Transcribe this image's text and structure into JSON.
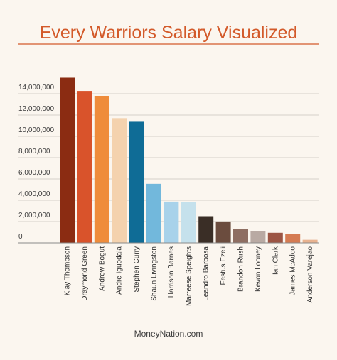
{
  "chart_data": {
    "type": "bar",
    "title": "Every Warriors Salary Visualized",
    "source": "MoneyNation.com",
    "categories": [
      "Klay Thompson",
      "Draymond Green",
      "Andrew Bogut",
      "Andre Iguodala",
      "Stephen Curry",
      "Shaun Livingston",
      "Harrison Barnes",
      "Marreese Speights",
      "Leandro Barbosa",
      "Festus Ezeli",
      "Brandon Rush",
      "Kevon Looney",
      "Ian Clark",
      "James McAdoo",
      "Anderson Varejao"
    ],
    "values": [
      15501000,
      14260870,
      13800000,
      11710456,
      11370786,
      5543725,
      3873398,
      3815000,
      2500000,
      2008748,
      1270964,
      1131960,
      947276,
      845059,
      289755
    ],
    "colors": [
      "#8b2c12",
      "#d9532b",
      "#ef8c3b",
      "#f4d2ae",
      "#0f6c96",
      "#72b8dc",
      "#a8d2ea",
      "#c5e1ec",
      "#3a2e26",
      "#6b4c3e",
      "#8e6e62",
      "#b9aaa3",
      "#9c5544",
      "#d57b52",
      "#e8b28f"
    ],
    "ylim": [
      0,
      16000000
    ],
    "yticks": [
      0,
      2000000,
      4000000,
      6000000,
      8000000,
      10000000,
      12000000,
      14000000
    ],
    "ytick_labels": [
      "0",
      "2,000,000",
      "4,000,000",
      "6,000,000",
      "8,000,000",
      "10,000,000",
      "12,000,000",
      "14,000,000"
    ],
    "grid": true,
    "title_color": "#d35a2a",
    "background": "#fbf6ef"
  }
}
